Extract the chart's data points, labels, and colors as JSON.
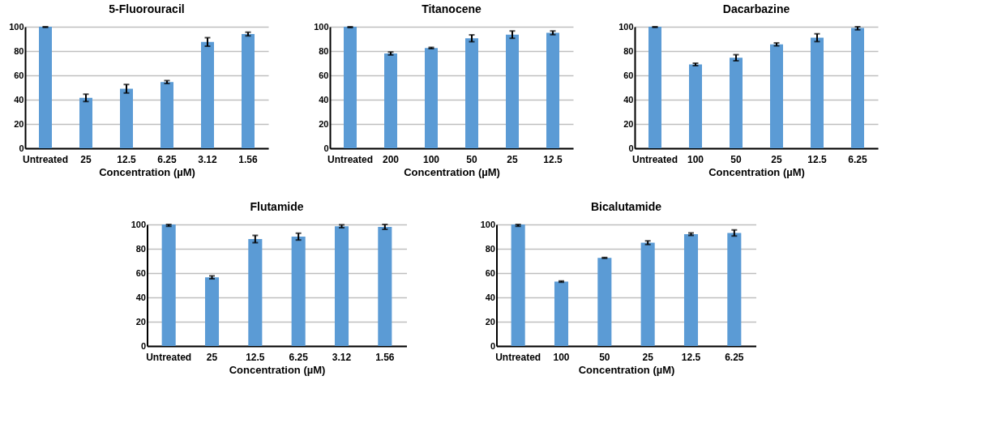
{
  "chart_data": [
    {
      "type": "bar",
      "title": "5-Fluorouracil",
      "xlabel": "Concentration (µM)",
      "categories": [
        "Untreated",
        "25",
        "12.5",
        "6.25",
        "3.12",
        "1.56"
      ],
      "values": [
        100,
        41.5,
        49,
        54.5,
        87.5,
        94
      ],
      "errors": [
        [
          99.5,
          100
        ],
        3,
        3.5,
        1.2,
        3.5,
        1.5
      ],
      "color": "#5b9bd5",
      "ylim": [
        0,
        100
      ],
      "yticks": [
        0,
        20,
        40,
        60,
        80,
        100
      ],
      "grid": "y"
    },
    {
      "type": "bar",
      "title": "Titanocene",
      "xlabel": "Concentration (µM)",
      "categories": [
        "Untreated",
        "200",
        "100",
        "50",
        "25",
        "12.5"
      ],
      "values": [
        100,
        78,
        82.5,
        90.5,
        93.5,
        95
      ],
      "errors": [
        [
          99.3,
          100
        ],
        1.2,
        0.5,
        2.8,
        3,
        1.5
      ],
      "color": "#5b9bd5",
      "ylim": [
        0,
        100
      ],
      "yticks": [
        0,
        20,
        40,
        60,
        80,
        100
      ],
      "grid": "y"
    },
    {
      "type": "bar",
      "title": "Dacarbazine",
      "xlabel": "Concentration (µM)",
      "categories": [
        "Untreated",
        "100",
        "50",
        "25",
        "12.5",
        "6.25"
      ],
      "values": [
        100,
        69,
        74.5,
        85.5,
        91,
        99
      ],
      "errors": [
        [
          99.5,
          100
        ],
        1,
        2.5,
        1.2,
        3.2,
        [
          97.5,
          100
        ]
      ],
      "color": "#5b9bd5",
      "ylim": [
        0,
        100
      ],
      "yticks": [
        0,
        20,
        40,
        60,
        80,
        100
      ],
      "grid": "y"
    },
    {
      "type": "bar",
      "title": "Flutamide",
      "xlabel": "Concentration (µM)",
      "categories": [
        "Untreated",
        "25",
        "12.5",
        "6.25",
        "3.12",
        "1.56"
      ],
      "values": [
        100,
        56.5,
        88,
        90,
        98.5,
        98
      ],
      "errors": [
        [
          98.5,
          100
        ],
        1.2,
        3,
        2.8,
        1.2,
        2
      ],
      "color": "#5b9bd5",
      "ylim": [
        0,
        100
      ],
      "yticks": [
        0,
        20,
        40,
        60,
        80,
        100
      ],
      "grid": "y"
    },
    {
      "type": "bar",
      "title": "Bicalutamide",
      "xlabel": "Concentration (µM)",
      "categories": [
        "Untreated",
        "100",
        "50",
        "25",
        "12.5",
        "6.25"
      ],
      "values": [
        100,
        53,
        72.5,
        85,
        92,
        93
      ],
      "errors": [
        [
          98.5,
          100
        ],
        0.5,
        0.3,
        1.5,
        1,
        2.5
      ],
      "color": "#5b9bd5",
      "ylim": [
        0,
        100
      ],
      "yticks": [
        0,
        20,
        40,
        60,
        80,
        100
      ],
      "grid": "y"
    }
  ]
}
